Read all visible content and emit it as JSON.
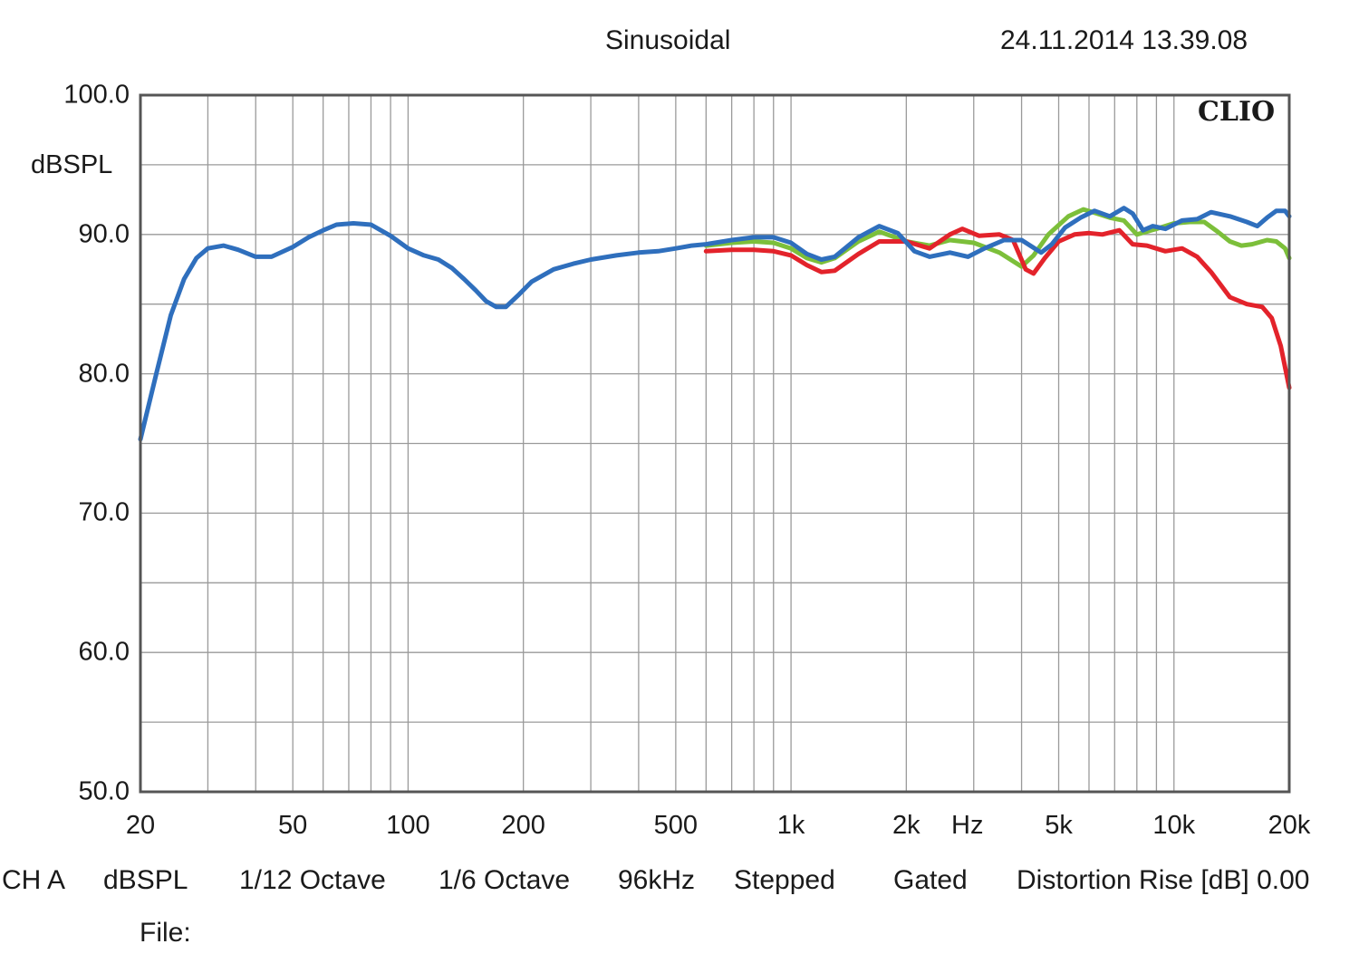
{
  "header": {
    "mode": "Sinusoidal",
    "datetime": "24.11.2014 13.39.08"
  },
  "logo": "CLIO",
  "footer": {
    "channel": "CH A",
    "unit": "dBSPL",
    "smoothing": "1/12 Octave",
    "resolution": "1/6 Octave",
    "sample_rate": "96kHz",
    "sweep": "Stepped",
    "window": "Gated",
    "distortion": "Distortion Rise [dB] 0.00",
    "file_label": "File:"
  },
  "chart_data": {
    "type": "line",
    "title": "Sinusoidal",
    "xlabel": "Hz",
    "ylabel": "dBSPL",
    "xscale": "log",
    "xlim": [
      20,
      20000
    ],
    "ylim": [
      50,
      100
    ],
    "grid": true,
    "y_ticks": [
      "100.0",
      "90.0",
      "80.0",
      "70.0",
      "60.0",
      "50.0"
    ],
    "x_ticks": [
      {
        "value": 20,
        "label": "20"
      },
      {
        "value": 50,
        "label": "50"
      },
      {
        "value": 100,
        "label": "100"
      },
      {
        "value": 200,
        "label": "200"
      },
      {
        "value": 500,
        "label": "500"
      },
      {
        "value": 1000,
        "label": "1k"
      },
      {
        "value": 2000,
        "label": "2k"
      },
      {
        "value": 5000,
        "label": "5k"
      },
      {
        "value": 10000,
        "label": "10k"
      },
      {
        "value": 20000,
        "label": "20k"
      }
    ],
    "series": [
      {
        "color": "#7cbf3a",
        "points": [
          [
            600,
            89.2
          ],
          [
            700,
            89.4
          ],
          [
            800,
            89.5
          ],
          [
            900,
            89.4
          ],
          [
            1000,
            89.0
          ],
          [
            1100,
            88.3
          ],
          [
            1200,
            88.0
          ],
          [
            1300,
            88.3
          ],
          [
            1500,
            89.5
          ],
          [
            1700,
            90.2
          ],
          [
            2000,
            89.5
          ],
          [
            2300,
            89.2
          ],
          [
            2600,
            89.6
          ],
          [
            3000,
            89.4
          ],
          [
            3500,
            88.7
          ],
          [
            4000,
            87.7
          ],
          [
            4300,
            88.5
          ],
          [
            4700,
            90.0
          ],
          [
            5300,
            91.3
          ],
          [
            5800,
            91.8
          ],
          [
            6300,
            91.5
          ],
          [
            6800,
            91.2
          ],
          [
            7400,
            91.0
          ],
          [
            8000,
            90.0
          ],
          [
            9000,
            90.4
          ],
          [
            10000,
            90.8
          ],
          [
            11000,
            90.9
          ],
          [
            12000,
            90.9
          ],
          [
            13000,
            90.2
          ],
          [
            14000,
            89.5
          ],
          [
            15000,
            89.2
          ],
          [
            16000,
            89.3
          ],
          [
            17500,
            89.6
          ],
          [
            18500,
            89.5
          ],
          [
            19500,
            89.0
          ],
          [
            20000,
            88.3
          ]
        ]
      },
      {
        "color": "#e3232b",
        "points": [
          [
            600,
            88.8
          ],
          [
            700,
            88.9
          ],
          [
            800,
            88.9
          ],
          [
            900,
            88.8
          ],
          [
            1000,
            88.5
          ],
          [
            1100,
            87.8
          ],
          [
            1200,
            87.3
          ],
          [
            1300,
            87.4
          ],
          [
            1500,
            88.6
          ],
          [
            1700,
            89.5
          ],
          [
            2000,
            89.5
          ],
          [
            2300,
            89.0
          ],
          [
            2600,
            90.0
          ],
          [
            2800,
            90.4
          ],
          [
            3100,
            89.9
          ],
          [
            3500,
            90.0
          ],
          [
            3800,
            89.6
          ],
          [
            4100,
            87.5
          ],
          [
            4300,
            87.2
          ],
          [
            4600,
            88.3
          ],
          [
            5000,
            89.5
          ],
          [
            5500,
            90.0
          ],
          [
            6000,
            90.1
          ],
          [
            6500,
            90.0
          ],
          [
            7200,
            90.3
          ],
          [
            7800,
            89.3
          ],
          [
            8500,
            89.2
          ],
          [
            9500,
            88.8
          ],
          [
            10500,
            89.0
          ],
          [
            11500,
            88.4
          ],
          [
            12500,
            87.3
          ],
          [
            14000,
            85.5
          ],
          [
            15500,
            85.0
          ],
          [
            17000,
            84.8
          ],
          [
            18000,
            84.0
          ],
          [
            19000,
            82.0
          ],
          [
            20000,
            79.0
          ]
        ]
      },
      {
        "color": "#2f6fbd",
        "points": [
          [
            20,
            75.3
          ],
          [
            22,
            80.0
          ],
          [
            24,
            84.2
          ],
          [
            26,
            86.8
          ],
          [
            28,
            88.3
          ],
          [
            30,
            89.0
          ],
          [
            33,
            89.2
          ],
          [
            36,
            88.9
          ],
          [
            40,
            88.4
          ],
          [
            44,
            88.4
          ],
          [
            50,
            89.1
          ],
          [
            55,
            89.8
          ],
          [
            60,
            90.3
          ],
          [
            65,
            90.7
          ],
          [
            72,
            90.8
          ],
          [
            80,
            90.7
          ],
          [
            90,
            89.9
          ],
          [
            100,
            89.0
          ],
          [
            110,
            88.5
          ],
          [
            120,
            88.2
          ],
          [
            130,
            87.6
          ],
          [
            140,
            86.8
          ],
          [
            150,
            86.0
          ],
          [
            160,
            85.2
          ],
          [
            170,
            84.8
          ],
          [
            180,
            84.8
          ],
          [
            195,
            85.7
          ],
          [
            210,
            86.6
          ],
          [
            240,
            87.5
          ],
          [
            270,
            87.9
          ],
          [
            300,
            88.2
          ],
          [
            350,
            88.5
          ],
          [
            400,
            88.7
          ],
          [
            450,
            88.8
          ],
          [
            500,
            89.0
          ],
          [
            550,
            89.2
          ],
          [
            600,
            89.3
          ],
          [
            700,
            89.6
          ],
          [
            800,
            89.8
          ],
          [
            900,
            89.8
          ],
          [
            1000,
            89.4
          ],
          [
            1100,
            88.6
          ],
          [
            1200,
            88.2
          ],
          [
            1300,
            88.4
          ],
          [
            1500,
            89.8
          ],
          [
            1700,
            90.6
          ],
          [
            1900,
            90.1
          ],
          [
            2100,
            88.8
          ],
          [
            2300,
            88.4
          ],
          [
            2600,
            88.7
          ],
          [
            2900,
            88.4
          ],
          [
            3200,
            89.0
          ],
          [
            3600,
            89.6
          ],
          [
            4000,
            89.6
          ],
          [
            4500,
            88.7
          ],
          [
            4800,
            89.3
          ],
          [
            5200,
            90.5
          ],
          [
            5700,
            91.2
          ],
          [
            6200,
            91.7
          ],
          [
            6800,
            91.3
          ],
          [
            7400,
            91.9
          ],
          [
            7800,
            91.5
          ],
          [
            8300,
            90.3
          ],
          [
            8800,
            90.6
          ],
          [
            9500,
            90.4
          ],
          [
            10500,
            91.0
          ],
          [
            11500,
            91.1
          ],
          [
            12500,
            91.6
          ],
          [
            14000,
            91.3
          ],
          [
            15500,
            90.9
          ],
          [
            16500,
            90.6
          ],
          [
            17500,
            91.2
          ],
          [
            18500,
            91.7
          ],
          [
            19500,
            91.7
          ],
          [
            20000,
            91.3
          ]
        ]
      }
    ]
  }
}
